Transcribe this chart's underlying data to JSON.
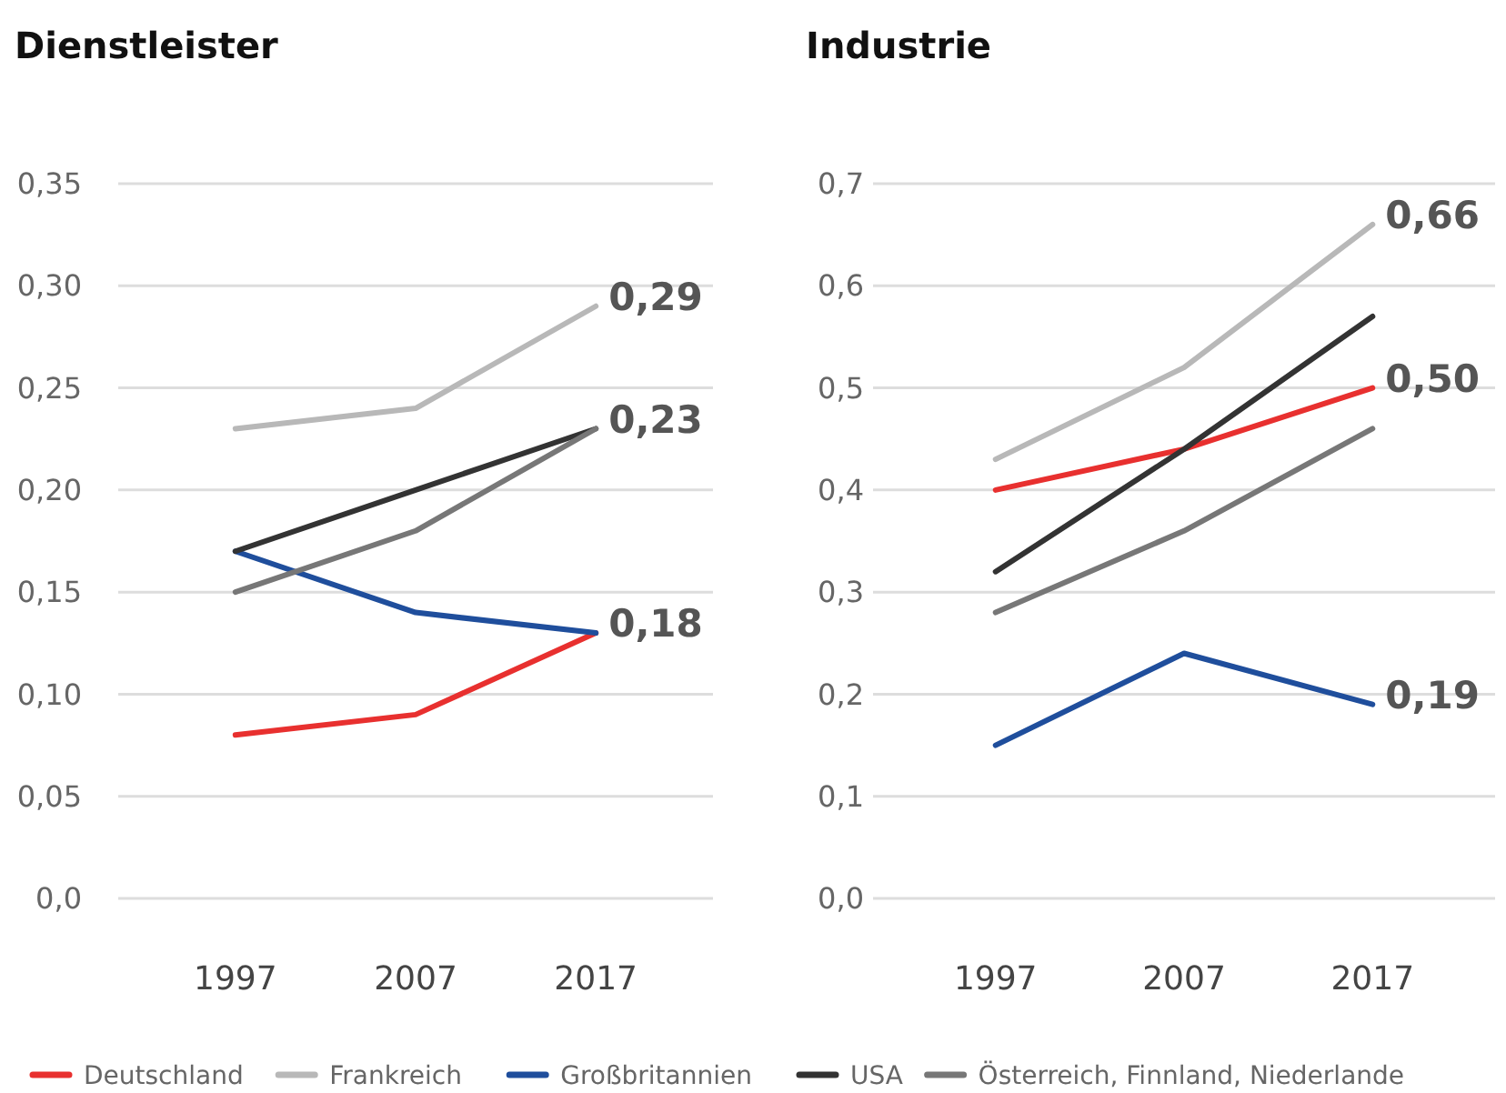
{
  "chart_data": [
    {
      "type": "line",
      "title": "Dienstleister",
      "categories": [
        "1997",
        "2007",
        "2017"
      ],
      "ylim": [
        0,
        0.35
      ],
      "yticks": [
        {
          "value": 0,
          "label": "0,0"
        },
        {
          "value": 0.05,
          "label": "0,05"
        },
        {
          "value": 0.1,
          "label": "0,10"
        },
        {
          "value": 0.15,
          "label": "0,15"
        },
        {
          "value": 0.2,
          "label": "0,20"
        },
        {
          "value": 0.25,
          "label": "0,25"
        },
        {
          "value": 0.3,
          "label": "0,30"
        },
        {
          "value": 0.35,
          "label": "0,35"
        }
      ],
      "grid": "y",
      "legend": "bottom",
      "marker": "none",
      "line_style": "solid",
      "series": [
        {
          "name": "Deutschland",
          "color": "#e8302f",
          "values": [
            0.08,
            0.09,
            0.13
          ]
        },
        {
          "name": "Frankreich",
          "color": "#b8b8b8",
          "values": [
            0.23,
            0.24,
            0.29
          ]
        },
        {
          "name": "Großbritannien",
          "color": "#1f4e9c",
          "values": [
            0.17,
            0.14,
            0.13
          ]
        },
        {
          "name": "USA",
          "color": "#333333",
          "values": [
            0.17,
            0.2,
            0.23
          ]
        },
        {
          "name": "Österreich, Finnland, Niederlande",
          "color": "#777777",
          "values": [
            0.15,
            0.18,
            0.23
          ]
        }
      ],
      "annotations": [
        {
          "text": "0,29",
          "x": "2017",
          "y": 0.29
        },
        {
          "text": "0,23",
          "x": "2017",
          "y": 0.23
        },
        {
          "text": "0,18",
          "x": "2017",
          "y": 0.13
        }
      ]
    },
    {
      "type": "line",
      "title": "Industrie",
      "categories": [
        "1997",
        "2007",
        "2017"
      ],
      "ylim": [
        0,
        0.7
      ],
      "yticks": [
        {
          "value": 0,
          "label": "0,0"
        },
        {
          "value": 0.1,
          "label": "0,1"
        },
        {
          "value": 0.2,
          "label": "0,2"
        },
        {
          "value": 0.3,
          "label": "0,3"
        },
        {
          "value": 0.4,
          "label": "0,4"
        },
        {
          "value": 0.5,
          "label": "0,5"
        },
        {
          "value": 0.6,
          "label": "0,6"
        },
        {
          "value": 0.7,
          "label": "0,7"
        }
      ],
      "grid": "y",
      "marker": "none",
      "line_style": "solid",
      "series": [
        {
          "color": "#e8302f",
          "values": [
            0.4,
            0.44,
            0.5
          ]
        },
        {
          "color": "#b8b8b8",
          "values": [
            0.43,
            0.52,
            0.66
          ]
        },
        {
          "color": "#1f4e9c",
          "values": [
            0.15,
            0.24,
            0.19
          ]
        },
        {
          "color": "#333333",
          "values": [
            0.32,
            0.44,
            0.57
          ]
        },
        {
          "color": "#777777",
          "values": [
            0.28,
            0.36,
            0.46
          ]
        }
      ],
      "annotations": [
        {
          "text": "0,66",
          "x": "2017",
          "y": 0.66
        },
        {
          "text": "0,50",
          "x": "2017",
          "y": 0.5
        },
        {
          "text": "0,19",
          "x": "2017",
          "y": 0.19
        }
      ]
    }
  ]
}
